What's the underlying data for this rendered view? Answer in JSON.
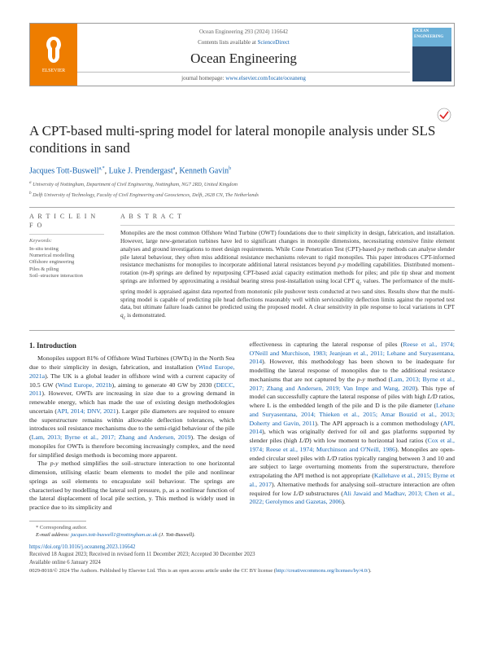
{
  "header": {
    "bibline": "Ocean Engineering 293 (2024) 116642",
    "contents_prefix": "Contents lists available at ",
    "contents_link": "ScienceDirect",
    "journal": "Ocean Engineering",
    "homepage_prefix": "journal homepage: ",
    "homepage_url": "www.elsevier.com/locate/oceaneng",
    "publisher": "ELSEVIER",
    "cover_label": "OCEAN ENGINEERING"
  },
  "title": "A CPT-based multi-spring model for lateral monopile analysis under SLS conditions in sand",
  "authors": [
    {
      "name": "Jacques Tott-Buswell",
      "marks": "a,*"
    },
    {
      "name": "Luke J. Prendergast",
      "marks": "a"
    },
    {
      "name": "Kenneth Gavin",
      "marks": "b"
    }
  ],
  "author_sep": ", ",
  "affiliations": [
    "University of Nottingham, Department of Civil Engineering, Nottingham, NG7 2RD, United Kingdom",
    "Delft University of Technology, Faculty of Civil Engineering and Geosciences, Delft, 2628 CN, The Netherlands"
  ],
  "affil_marks": [
    "a",
    "b"
  ],
  "article_info_title": "A R T I C L E   I N F O",
  "abstract_title": "A B S T R A C T",
  "keywords_label": "Keywords:",
  "keywords": [
    "In-situ testing",
    "Numerical modelling",
    "Offshore engineering",
    "Piles & piling",
    "Soil–structure interaction"
  ],
  "abstract": "Monopiles are the most common Offshore Wind Turbine (OWT) foundations due to their simplicity in design, fabrication, and installation. However, large new-generation turbines have led to significant changes in monopile dimensions, necessitating extensive finite element analyses and ground investigations to meet design requirements. While Cone Penetration Test (CPT)-based p-y methods can analyse slender pile lateral behaviour, they often miss additional resistance mechanisms relevant to rigid monopiles. This paper introduces CPT-informed resistance mechanisms for monopiles to incorporate additional lateral resistances beyond p-y modelling capabilities. Distributed moment–rotation (m-θ) springs are defined by repurposing CPT-based axial capacity estimation methods for piles; and pile tip shear and moment springs are informed by approximating a residual bearing stress post-installation using local CPT qc values. The performance of the multi-spring model is appraised against data reported from monotonic pile pushover tests conducted at two sand sites. Results show that the multi-spring model is capable of predicting pile head deflections reasonably well within serviceability deflection limits against the reported test data, but ultimate failure loads cannot be predicted using the proposed model. A clear sensitivity in pile response to local variations in CPT qc is demonstrated.",
  "section1_heading": "1. Introduction",
  "col_left_p1": "Monopiles support 81% of Offshore Wind Turbines (OWTs) in the North Sea due to their simplicity in design, fabrication, and installation (Wind Europe, 2021a). The UK is a global leader in offshore wind with a current capacity of 10.5 GW (Wind Europe, 2021b), aiming to generate 40 GW by 2030 (DECC, 2011). However, OWTs are increasing in size due to a growing demand in renewable energy, which has made the use of existing design methodologies uncertain (API, 2014; DNV, 2021). Larger pile diameters are required to ensure the superstructure remains within allowable deflection tolerances, which introduces soil resistance mechanisms due to the semi-rigid behaviour of the pile (Lam, 2013; Byrne et al., 2017; Zhang and Andersen, 2019). The design of monopiles for OWTs is therefore becoming increasingly complex, and the need for simplified design methods is becoming more apparent.",
  "col_left_p2": "The p-y method simplifies the soil–structure interaction to one horizontal dimension, utilising elastic beam elements to model the pile and nonlinear springs as soil elements to encapsulate soil behaviour. The springs are characterised by modelling the lateral soil pressure, p, as a nonlinear function of the lateral displacement of local pile section, y. This method is widely used in practice due to its simplicity and",
  "col_right_p1": "effectiveness in capturing the lateral response of piles (Reese et al., 1974; O'Neill and Murchison, 1983; Jeanjean et al., 2011; Lehane and Suryasentana, 2014). However, this methodology has been shown to be inadequate for modelling the lateral response of monopiles due to the additional resistance mechanisms that are not captured by the p-y method (Lam, 2013; Byrne et al., 2017; Zhang and Andersen, 2019; Van Impe and Wang, 2020). This type of model can successfully capture the lateral response of piles with high L/D ratios, where L is the embedded length of the pile and D is the pile diameter (Lehane and Suryasentana, 2014; Thieken et al., 2015; Amar Bouzid et al., 2013; Doherty and Gavin, 2011). The API approach is a common methodology (API, 2014), which was originally derived for oil and gas platforms supported by slender piles (high L/D) with low moment to horizontal load ratios (Cox et al., 1974; Reese et al., 1974; Murchinson and O'Neill, 1986). Monopiles are open-ended circular steel piles with L/D ratios typically ranging between 3 and 10 and are subject to large overturning moments from the superstructure, therefore extrapolating the API method is not appropriate (Kallehave et al., 2015; Byrne et al., 2017). Alternative methods for analysing soil–structure interaction are often required for low L/D substructures (Ali Jawaid and Madhav, 2013; Chen et al., 2022; Gerolymos and Gazetas, 2006).",
  "footer": {
    "corr": "* Corresponding author.",
    "email_label": "E-mail address: ",
    "email": "jacques.tott-buswell1@nottingham.ac.uk",
    "email_suffix": " (J. Tott-Buswell).",
    "doi": "https://doi.org/10.1016/j.oceaneng.2023.116642",
    "history": "Received 18 August 2023; Received in revised form 11 December 2023; Accepted 30 December 2023",
    "available": "Available online 6 January 2024",
    "copyright": "0029-8018/© 2024 The Authors. Published by Elsevier Ltd. This is an open access article under the CC BY license (",
    "cc_url": "http://creativecommons.org/licenses/by/4.0/",
    "copyright_end": ")."
  },
  "colors": {
    "link": "#1664b0",
    "elsevier_orange": "#ee7d00"
  }
}
